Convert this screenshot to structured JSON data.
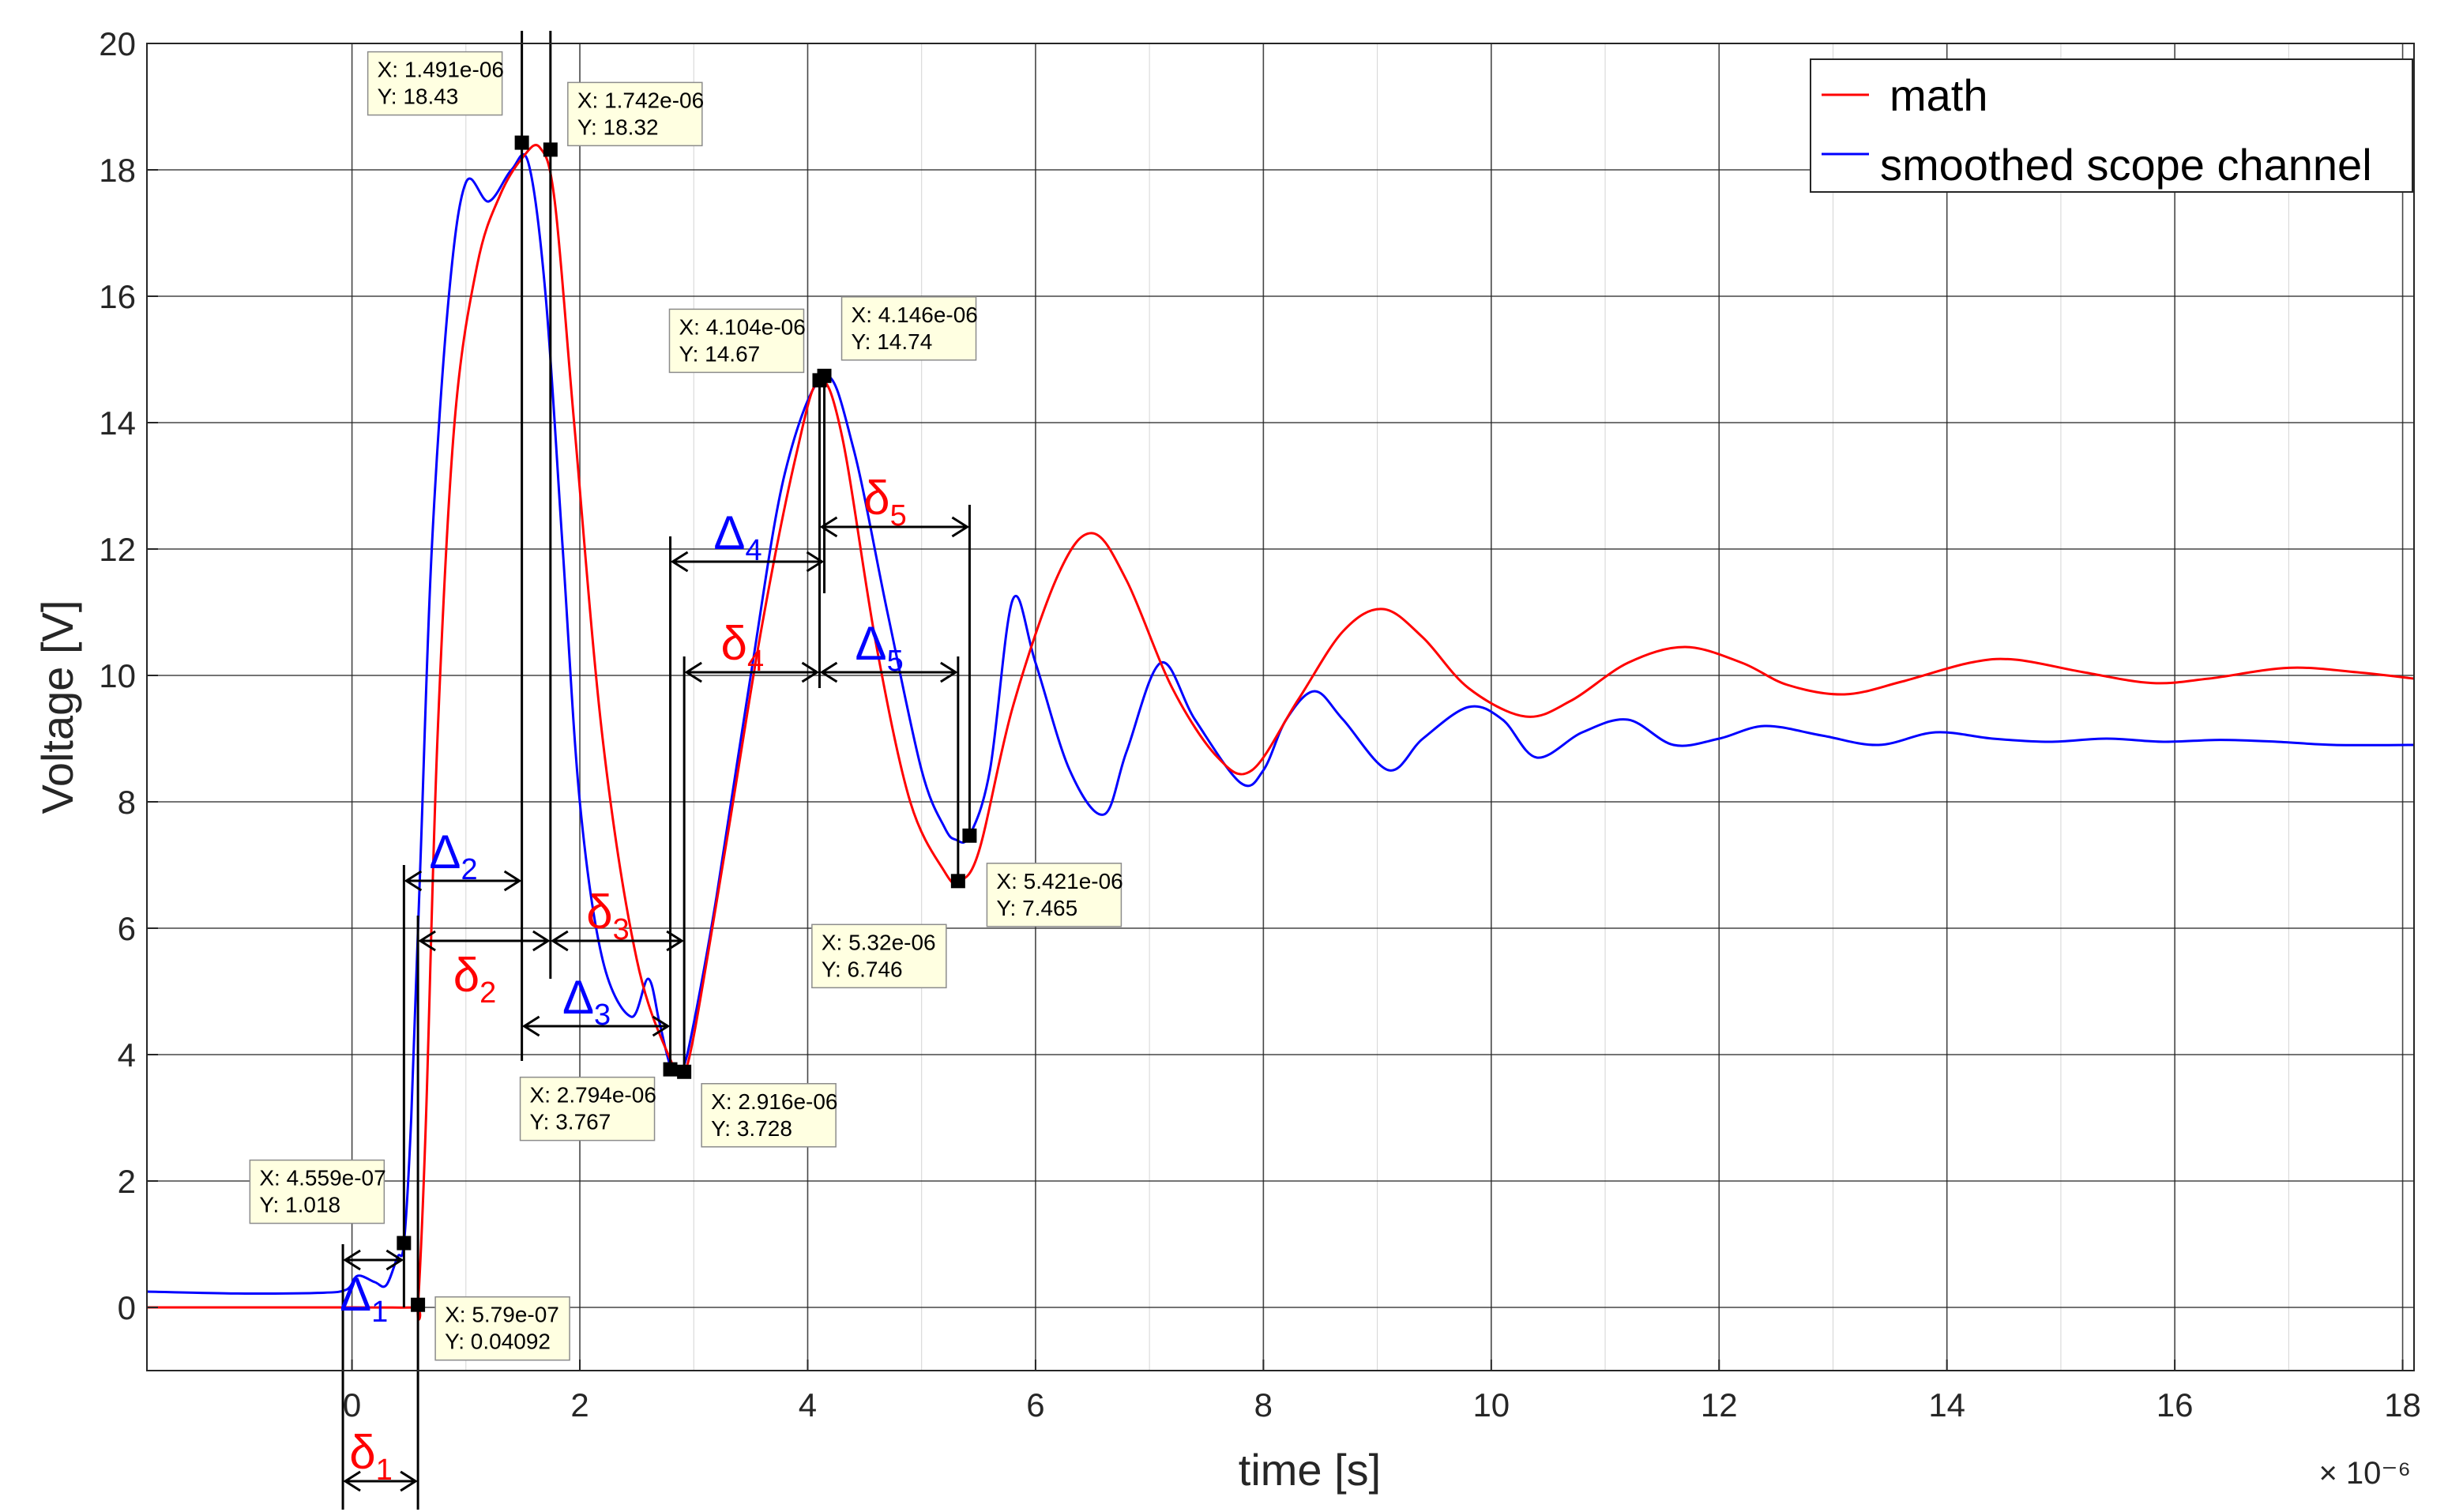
{
  "colors": {
    "math": "#ff0000",
    "scope": "#0000ff",
    "grid": "#262626",
    "tip_bg": "#ffffe1",
    "marker": "#000000"
  },
  "chart_data": {
    "type": "line",
    "xlabel": "time [s]",
    "ylabel": "Voltage [V]",
    "x_exponent": "× 10⁻⁶",
    "xlim": [
      -1.8,
      18.1
    ],
    "ylim": [
      -1,
      20
    ],
    "xticks": [
      0,
      2,
      4,
      6,
      8,
      10,
      12,
      14,
      16,
      18
    ],
    "xtick_labels": [
      "0",
      "2",
      "4",
      "6",
      "8",
      "10",
      "12",
      "14",
      "16",
      "18"
    ],
    "yticks": [
      0,
      2,
      4,
      6,
      8,
      10,
      12,
      14,
      16,
      18,
      20
    ],
    "ytick_labels": [
      "0",
      "2",
      "4",
      "6",
      "8",
      "10",
      "12",
      "14",
      "16",
      "18",
      "20"
    ],
    "grid": true,
    "legend": {
      "position": "top-right",
      "entries": [
        "math",
        "smoothed scope channel"
      ]
    },
    "series": [
      {
        "name": "math",
        "color": "#ff0000",
        "x": [
          -1.8,
          0.0,
          0.55,
          0.58,
          0.65,
          0.75,
          0.9,
          1.1,
          1.3,
          1.5,
          1.65,
          1.78,
          1.95,
          2.2,
          2.5,
          2.8,
          2.9,
          3.0,
          3.3,
          3.6,
          3.9,
          4.1,
          4.3,
          4.6,
          4.9,
          5.2,
          5.32,
          5.5,
          5.8,
          6.2,
          6.5,
          6.8,
          7.2,
          7.6,
          7.9,
          8.3,
          8.7,
          9.05,
          9.4,
          9.8,
          10.3,
          10.7,
          11.2,
          11.7,
          12.2,
          12.6,
          13.1,
          13.6,
          14.2,
          14.6,
          15.2,
          15.8,
          16.3,
          17.0,
          17.6,
          18.1
        ],
        "values": [
          0,
          0,
          0,
          0.04,
          3,
          9,
          14,
          16.5,
          17.6,
          18.2,
          18.35,
          17.5,
          14,
          9,
          5.5,
          3.9,
          3.73,
          4.3,
          7.5,
          10.8,
          13.5,
          14.67,
          13.8,
          10.5,
          8,
          6.9,
          6.75,
          7.2,
          9.5,
          11.6,
          12.25,
          11.5,
          9.8,
          8.7,
          8.5,
          9.6,
          10.7,
          11.05,
          10.6,
          9.8,
          9.35,
          9.6,
          10.2,
          10.45,
          10.2,
          9.85,
          9.7,
          9.9,
          10.2,
          10.25,
          10.05,
          9.88,
          9.95,
          10.12,
          10.05,
          9.95
        ]
      },
      {
        "name": "smoothed scope channel",
        "color": "#0000ff",
        "x": [
          -1.8,
          -1.0,
          -0.3,
          -0.05,
          0.05,
          0.2,
          0.3,
          0.4,
          0.456,
          0.52,
          0.6,
          0.7,
          0.85,
          1.0,
          1.2,
          1.4,
          1.55,
          1.7,
          1.85,
          2.0,
          2.2,
          2.45,
          2.6,
          2.7,
          2.8,
          2.9,
          3.0,
          3.2,
          3.5,
          3.8,
          4.146,
          4.4,
          4.7,
          5.0,
          5.2,
          5.3,
          5.42,
          5.6,
          5.8,
          6.0,
          6.3,
          6.6,
          6.8,
          7.1,
          7.4,
          7.8,
          8.0,
          8.2,
          8.45,
          8.7,
          9.1,
          9.4,
          9.8,
          10.1,
          10.4,
          10.8,
          11.2,
          11.6,
          12.0,
          12.4,
          12.9,
          13.4,
          13.9,
          14.4,
          14.9,
          15.4,
          15.9,
          16.4,
          16.9,
          17.4,
          18.1
        ],
        "values": [
          0.25,
          0.22,
          0.23,
          0.28,
          0.5,
          0.4,
          0.35,
          0.8,
          1.018,
          3,
          7,
          12,
          16,
          17.8,
          17.5,
          18,
          18.1,
          16,
          12,
          8,
          5.5,
          4.6,
          5.2,
          4.5,
          3.8,
          3.77,
          4.5,
          6.5,
          10,
          13.2,
          14.74,
          13.6,
          11,
          8.5,
          7.6,
          7.4,
          7.465,
          8.5,
          11.2,
          10.2,
          8.5,
          7.8,
          8.8,
          10.2,
          9.3,
          8.3,
          8.5,
          9.3,
          9.75,
          9.3,
          8.5,
          9.0,
          9.5,
          9.3,
          8.7,
          9.1,
          9.3,
          8.9,
          9.0,
          9.2,
          9.05,
          8.9,
          9.1,
          9.0,
          8.95,
          9.0,
          8.95,
          8.98,
          8.95,
          8.9,
          8.9
        ]
      }
    ],
    "datatips": [
      {
        "label_x": "X: 1.491e-06",
        "label_y": "Y: 18.43",
        "x": 1.491,
        "y": 18.43
      },
      {
        "label_x": "X: 1.742e-06",
        "label_y": "Y: 18.32",
        "x": 1.742,
        "y": 18.32
      },
      {
        "label_x": "X: 4.104e-06",
        "label_y": "Y: 14.67",
        "x": 4.104,
        "y": 14.67
      },
      {
        "label_x": "X: 4.146e-06",
        "label_y": "Y: 14.74",
        "x": 4.146,
        "y": 14.74
      },
      {
        "label_x": "X: 5.421e-06",
        "label_y": "Y: 7.465",
        "x": 5.421,
        "y": 7.465
      },
      {
        "label_x": "X: 5.32e-06",
        "label_y": "Y: 6.746",
        "x": 5.32,
        "y": 6.746
      },
      {
        "label_x": "X: 2.794e-06",
        "label_y": "Y: 3.767",
        "x": 2.794,
        "y": 3.767
      },
      {
        "label_x": "X: 2.916e-06",
        "label_y": "Y: 3.728",
        "x": 2.916,
        "y": 3.728
      },
      {
        "label_x": "X: 4.559e-07",
        "label_y": "Y: 1.018",
        "x": 0.4559,
        "y": 1.018
      },
      {
        "label_x": "X: 5.79e-07",
        "label_y": "Y: 0.04092",
        "x": 0.579,
        "y": 0.04092
      }
    ],
    "annotations": [
      {
        "symbol": "Δ",
        "sub": "1",
        "color": "#0000ff",
        "x1": -0.08,
        "x2": 0.456,
        "y": 0.75,
        "label_at": "below"
      },
      {
        "symbol": "δ",
        "sub": "1",
        "color": "#ff0000",
        "x1": -0.08,
        "x2": 0.579,
        "y": -2.75,
        "label_at": "above"
      },
      {
        "symbol": "Δ",
        "sub": "2",
        "color": "#0000ff",
        "x1": 0.456,
        "x2": 1.491,
        "y": 6.75,
        "label_at": "above"
      },
      {
        "symbol": "δ",
        "sub": "2",
        "color": "#ff0000",
        "x1": 0.579,
        "x2": 1.742,
        "y": 5.8,
        "label_at": "below"
      },
      {
        "symbol": "δ",
        "sub": "3",
        "color": "#ff0000",
        "x1": 1.742,
        "x2": 2.916,
        "y": 5.8,
        "label_at": "above"
      },
      {
        "symbol": "Δ",
        "sub": "3",
        "color": "#0000ff",
        "x1": 1.491,
        "x2": 2.794,
        "y": 4.45,
        "label_at": "above"
      },
      {
        "symbol": "Δ",
        "sub": "4",
        "color": "#0000ff",
        "x1": 2.794,
        "x2": 4.146,
        "y": 11.8,
        "label_at": "above"
      },
      {
        "symbol": "δ",
        "sub": "4",
        "color": "#ff0000",
        "x1": 2.916,
        "x2": 4.104,
        "y": 10.05,
        "label_at": "above"
      },
      {
        "symbol": "δ",
        "sub": "5",
        "color": "#ff0000",
        "x1": 4.104,
        "x2": 5.421,
        "y": 12.35,
        "label_at": "above"
      },
      {
        "symbol": "Δ",
        "sub": "5",
        "color": "#0000ff",
        "x1": 4.104,
        "x2": 5.32,
        "y": 10.05,
        "label_at": "above"
      }
    ]
  }
}
